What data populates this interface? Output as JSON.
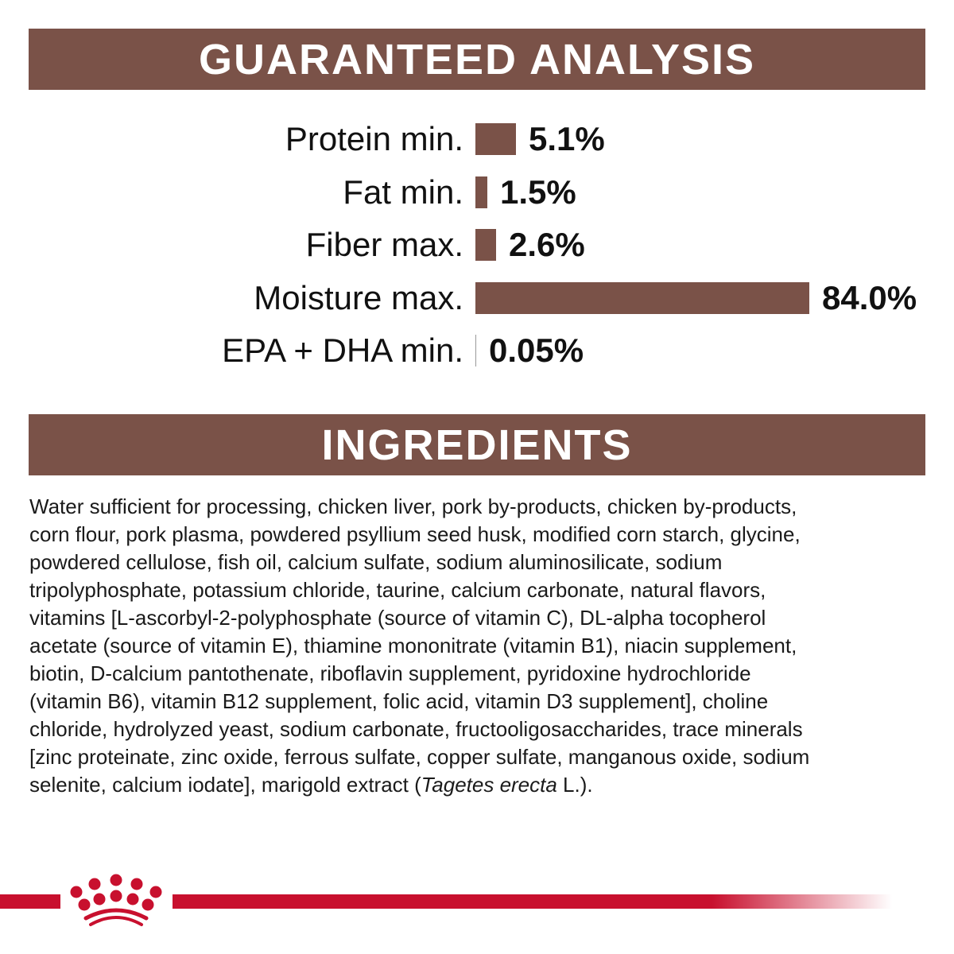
{
  "analysis": {
    "title": "GUARANTEED ANALYSIS",
    "items": [
      {
        "label": "Protein min.",
        "value": "5.1%",
        "number": 5.1
      },
      {
        "label": "Fat min.",
        "value": "1.5%",
        "number": 1.5
      },
      {
        "label": "Fiber max.",
        "value": "2.6%",
        "number": 2.6
      },
      {
        "label": "Moisture max.",
        "value": "84.0%",
        "number": 84.0
      },
      {
        "label": "EPA + DHA min.",
        "value": "0.05%",
        "number": 0.05
      }
    ]
  },
  "ingredients": {
    "title": "INGREDIENTS",
    "lines": [
      "Water sufficient for processing, chicken liver, pork by-products, chicken by-products,",
      "corn flour, pork plasma, powdered psyllium seed husk, modified corn starch, glycine,",
      "powdered cellulose, fish oil, calcium sulfate, sodium aluminosilicate, sodium",
      "tripolyphosphate, potassium chloride, taurine, calcium carbonate, natural flavors,",
      "vitamins [L-ascorbyl-2-polyphosphate (source of vitamin C), DL-alpha tocopherol",
      "acetate (source of vitamin E), thiamine mononitrate (vitamin B1), niacin supplement,",
      "biotin, D-calcium pantothenate, riboflavin supplement, pyridoxine hydrochloride",
      "(vitamin B6), vitamin B12 supplement, folic acid, vitamin D3 supplement], choline",
      "chloride, hydrolyzed yeast, sodium carbonate, fructooligosaccharides, trace minerals",
      "[zinc proteinate, zinc oxide, ferrous sulfate, copper sulfate, manganous oxide, sodium"
    ],
    "last_line_start": "selenite, calcium iodate], marigold extract (",
    "last_line_italic": "Tagetes erecta",
    "last_line_end": " L.)."
  },
  "colors": {
    "band": "#7a5248",
    "brand_red": "#c8102e"
  },
  "logo": {
    "icon": "royal-canin-crown-icon"
  }
}
